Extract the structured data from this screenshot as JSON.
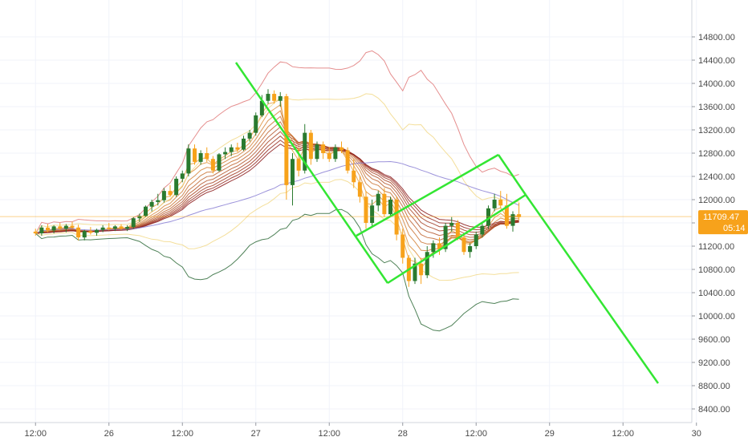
{
  "chart_data": {
    "type": "candlestick",
    "y_axis": {
      "ticks": [
        "8400.00",
        "8800.00",
        "9200.00",
        "9600.00",
        "10000.00",
        "10400.00",
        "10800.00",
        "11200.00",
        "11600.00",
        "12000.00",
        "12400.00",
        "12800.00",
        "13200.00",
        "13600.00",
        "14000.00",
        "14400.00",
        "14800.00"
      ],
      "range": [
        8200,
        14900
      ]
    },
    "x_axis": {
      "ticks": [
        "12:00",
        "26",
        "12:00",
        "27",
        "12:00",
        "28",
        "12:00",
        "29",
        "12:00",
        "30"
      ],
      "range_hours": [
        -12,
        100
      ]
    },
    "last_price": {
      "value": "11709.47",
      "countdown": "05:14",
      "color": "#f7a21b"
    },
    "grid": true,
    "colors": {
      "up": "#2a7a2f",
      "down": "#f7a21b",
      "channel": "#33e633",
      "ema_fast": "#e8a040",
      "ema_slow": "#8b1a1a",
      "band_outer_upper": "#e07a7a",
      "band_outer_lower": "#2f6b3a",
      "band_inner": "#f2d98a",
      "sma": "#8a7fd4"
    },
    "candles_hourly": [
      [
        11450,
        11500,
        11380,
        11420
      ],
      [
        11420,
        11560,
        11380,
        11520
      ],
      [
        11520,
        11580,
        11440,
        11470
      ],
      [
        11470,
        11560,
        11420,
        11540
      ],
      [
        11540,
        11600,
        11480,
        11500
      ],
      [
        11500,
        11580,
        11440,
        11550
      ],
      [
        11550,
        11620,
        11500,
        11520
      ],
      [
        11520,
        11570,
        11300,
        11350
      ],
      [
        11350,
        11480,
        11300,
        11460
      ],
      [
        11460,
        11530,
        11400,
        11430
      ],
      [
        11430,
        11500,
        11380,
        11480
      ],
      [
        11480,
        11560,
        11440,
        11520
      ],
      [
        11520,
        11600,
        11470,
        11500
      ],
      [
        11500,
        11560,
        11460,
        11540
      ],
      [
        11540,
        11580,
        11480,
        11500
      ],
      [
        11500,
        11560,
        11460,
        11530
      ],
      [
        11530,
        11700,
        11500,
        11680
      ],
      [
        11680,
        11760,
        11620,
        11720
      ],
      [
        11720,
        11900,
        11700,
        11880
      ],
      [
        11880,
        12000,
        11800,
        11960
      ],
      [
        11960,
        12100,
        11900,
        11990
      ],
      [
        11990,
        12200,
        11950,
        12150
      ],
      [
        12150,
        12250,
        12050,
        12080
      ],
      [
        12080,
        12400,
        12050,
        12360
      ],
      [
        12360,
        12500,
        12300,
        12450
      ],
      [
        12450,
        12950,
        12400,
        12880
      ],
      [
        12880,
        12950,
        12600,
        12650
      ],
      [
        12650,
        12850,
        12600,
        12800
      ],
      [
        12800,
        12900,
        12650,
        12700
      ],
      [
        12700,
        12750,
        12450,
        12500
      ],
      [
        12500,
        12800,
        12480,
        12780
      ],
      [
        12780,
        12900,
        12700,
        12820
      ],
      [
        12820,
        12950,
        12750,
        12900
      ],
      [
        12900,
        12980,
        12820,
        12860
      ],
      [
        12860,
        13100,
        12840,
        13050
      ],
      [
        13050,
        13200,
        13000,
        13150
      ],
      [
        13150,
        13500,
        13100,
        13450
      ],
      [
        13450,
        13800,
        13420,
        13700
      ],
      [
        13700,
        13900,
        13650,
        13820
      ],
      [
        13820,
        13880,
        13650,
        13700
      ],
      [
        13700,
        13850,
        13600,
        13780
      ],
      [
        13780,
        13820,
        12000,
        12250
      ],
      [
        12250,
        12800,
        11900,
        12700
      ],
      [
        12700,
        12900,
        12400,
        12500
      ],
      [
        12500,
        13300,
        12450,
        13150
      ],
      [
        13150,
        13200,
        12600,
        12700
      ],
      [
        12700,
        13000,
        12650,
        12950
      ],
      [
        12950,
        13000,
        12700,
        12800
      ],
      [
        12800,
        12900,
        12650,
        12700
      ],
      [
        12700,
        12950,
        12650,
        12900
      ],
      [
        12900,
        13000,
        12800,
        12850
      ],
      [
        12850,
        12900,
        12450,
        12500
      ],
      [
        12500,
        12700,
        12200,
        12300
      ],
      [
        12300,
        12400,
        11950,
        12050
      ],
      [
        12050,
        12150,
        11500,
        11600
      ],
      [
        11600,
        12000,
        11550,
        11900
      ],
      [
        11900,
        12150,
        11800,
        12100
      ],
      [
        12100,
        12200,
        11700,
        11750
      ],
      [
        11750,
        12050,
        11700,
        12000
      ],
      [
        12000,
        12050,
        11300,
        11400
      ],
      [
        11400,
        11500,
        10900,
        11000
      ],
      [
        11000,
        11050,
        10500,
        10600
      ],
      [
        10600,
        11000,
        10550,
        10900
      ],
      [
        10900,
        11000,
        10550,
        10700
      ],
      [
        10700,
        11200,
        10650,
        11100
      ],
      [
        11100,
        11300,
        11000,
        11250
      ],
      [
        11250,
        11350,
        11050,
        11150
      ],
      [
        11150,
        11600,
        11100,
        11550
      ],
      [
        11550,
        11700,
        11450,
        11600
      ],
      [
        11600,
        11650,
        11300,
        11350
      ],
      [
        11350,
        11400,
        11050,
        11100
      ],
      [
        11100,
        11250,
        11000,
        11200
      ],
      [
        11200,
        11450,
        11150,
        11400
      ],
      [
        11400,
        11600,
        11350,
        11550
      ],
      [
        11550,
        11900,
        11500,
        11850
      ],
      [
        11850,
        12100,
        11800,
        12000
      ],
      [
        12000,
        12150,
        11850,
        11900
      ],
      [
        11900,
        12100,
        11500,
        11550
      ],
      [
        11550,
        11800,
        11450,
        11750
      ],
      [
        11750,
        11950,
        11650,
        11700
      ]
    ]
  }
}
